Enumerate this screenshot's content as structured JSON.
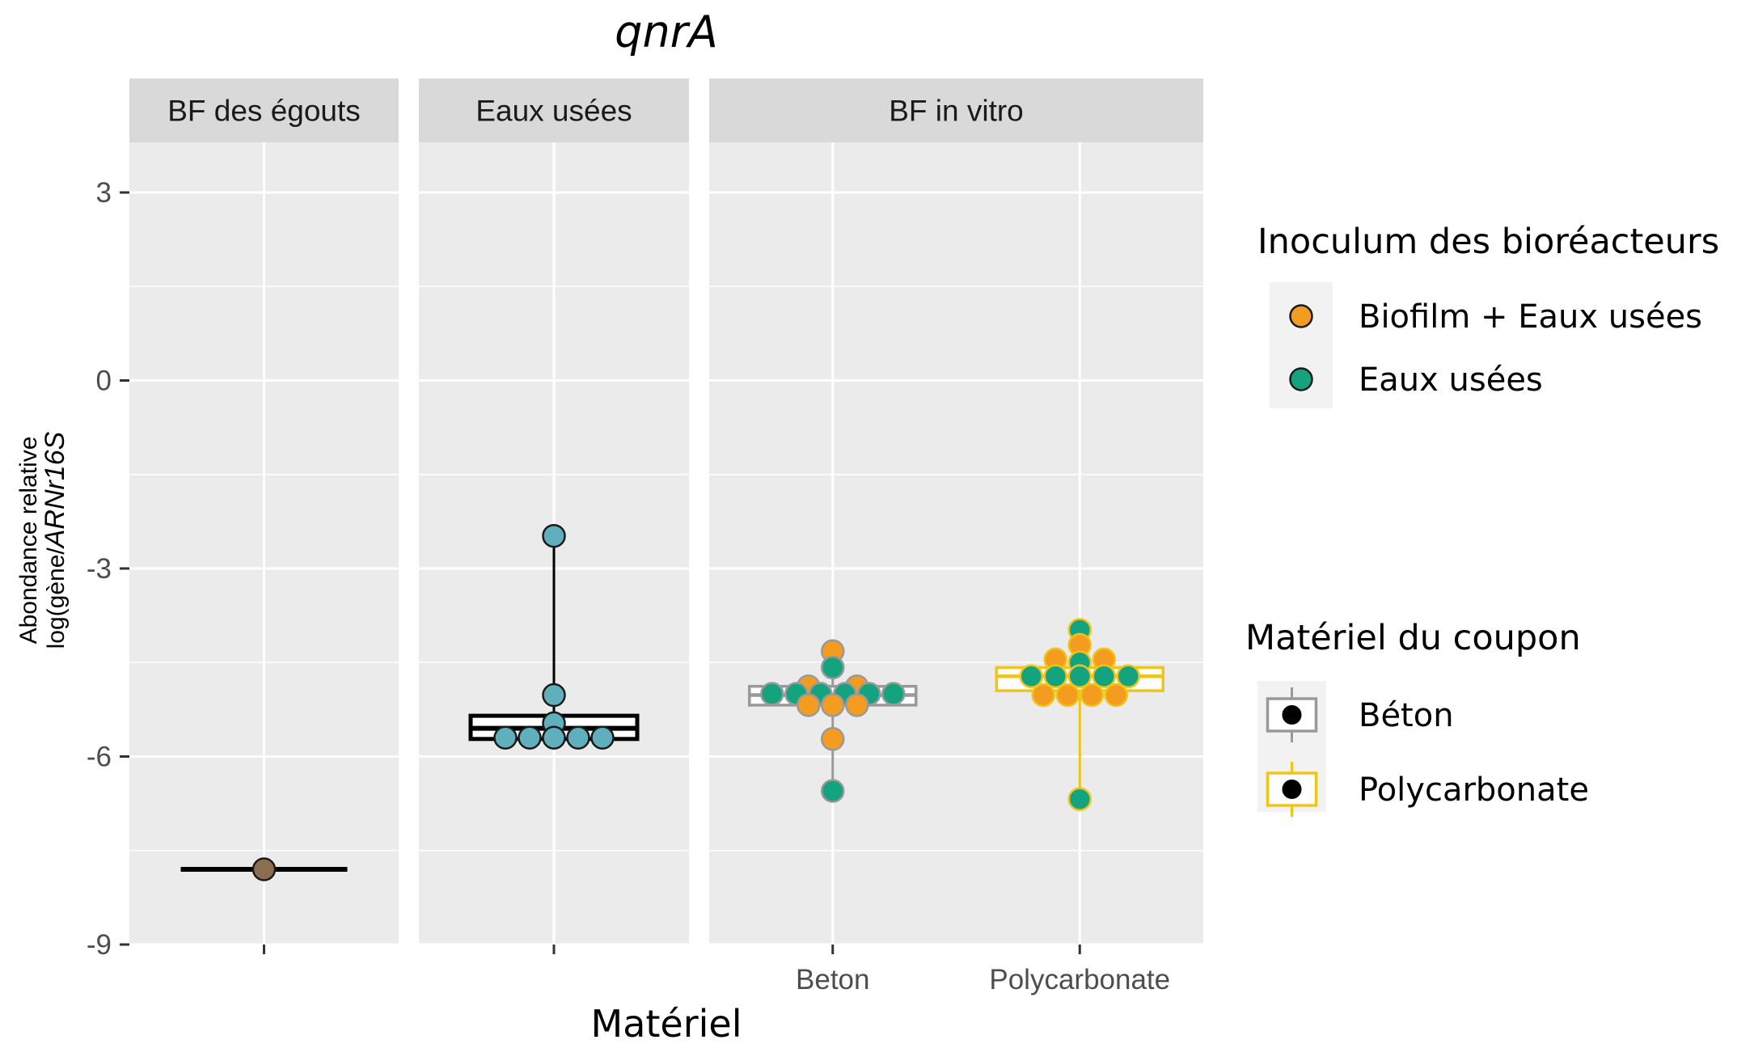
{
  "chart_data": {
    "type": "box",
    "title": "qnrA",
    "xlabel": "Matériel",
    "ylabel_line1": "Abondance relative",
    "ylabel_line2_prefix": "log(gène/",
    "ylabel_line2_italic": "ARNr16S",
    "ylabel_line2_suffix": "",
    "ylim": [
      -9,
      3.8
    ],
    "yticks": [
      3,
      0,
      -3,
      -6,
      -9
    ],
    "ytick_labels": [
      "3",
      "0",
      "-3",
      "-6",
      "-9"
    ],
    "grid": true,
    "panels": [
      {
        "label": "BF des égouts",
        "categories": [
          ""
        ],
        "boxes": [
          {
            "category": "",
            "q1": -7.8,
            "median": -7.8,
            "q3": -7.8,
            "whisker_low": -7.8,
            "whisker_high": -7.8,
            "border": "#000000",
            "outline_weight": "thick"
          }
        ],
        "points": [
          {
            "category": "",
            "y": -7.8,
            "fill": "#8c6d4f",
            "offset": 0
          }
        ]
      },
      {
        "label": "Eaux usées",
        "categories": [
          ""
        ],
        "boxes": [
          {
            "category": "",
            "q1": -5.72,
            "median": -5.55,
            "q3": -5.35,
            "whisker_low": -5.72,
            "whisker_high": -2.48,
            "border": "#000000",
            "outline_weight": "thick"
          }
        ],
        "points": [
          {
            "category": "",
            "y": -2.48,
            "fill": "#5fafbd",
            "offset": 0
          },
          {
            "category": "",
            "y": -5.02,
            "fill": "#5fafbd",
            "offset": 0
          },
          {
            "category": "",
            "y": -5.47,
            "fill": "#5fafbd",
            "offset": 0
          },
          {
            "category": "",
            "y": -5.7,
            "fill": "#5fafbd",
            "offset": -2
          },
          {
            "category": "",
            "y": -5.7,
            "fill": "#5fafbd",
            "offset": -1
          },
          {
            "category": "",
            "y": -5.7,
            "fill": "#5fafbd",
            "offset": 0
          },
          {
            "category": "",
            "y": -5.7,
            "fill": "#5fafbd",
            "offset": 1
          },
          {
            "category": "",
            "y": -5.7,
            "fill": "#5fafbd",
            "offset": 2
          }
        ]
      },
      {
        "label": "BF in vitro",
        "categories": [
          "Beton",
          "Polycarbonate"
        ],
        "boxes": [
          {
            "category": "Beton",
            "q1": -5.18,
            "median": -5.02,
            "q3": -4.88,
            "whisker_low": -6.55,
            "whisker_high": -4.32,
            "border": "#999999",
            "outline_weight": "normal"
          },
          {
            "category": "Polycarbonate",
            "q1": -4.95,
            "median": -4.72,
            "q3": -4.58,
            "whisker_low": -6.68,
            "whisker_high": -3.98,
            "border": "#f0c419",
            "outline_weight": "normal"
          }
        ],
        "points": [
          {
            "category": "Beton",
            "y": -4.32,
            "fill": "#f39c1f",
            "offset": 0
          },
          {
            "category": "Beton",
            "y": -4.58,
            "fill": "#14a37f",
            "offset": 0
          },
          {
            "category": "Beton",
            "y": -4.88,
            "fill": "#f39c1f",
            "offset": -1
          },
          {
            "category": "Beton",
            "y": -4.88,
            "fill": "#f39c1f",
            "offset": 1
          },
          {
            "category": "Beton",
            "y": -5.0,
            "fill": "#14a37f",
            "offset": -2.5
          },
          {
            "category": "Beton",
            "y": -5.0,
            "fill": "#14a37f",
            "offset": -1.5
          },
          {
            "category": "Beton",
            "y": -5.0,
            "fill": "#14a37f",
            "offset": -0.5
          },
          {
            "category": "Beton",
            "y": -5.0,
            "fill": "#14a37f",
            "offset": 0.5
          },
          {
            "category": "Beton",
            "y": -5.0,
            "fill": "#14a37f",
            "offset": 1.5
          },
          {
            "category": "Beton",
            "y": -5.0,
            "fill": "#14a37f",
            "offset": 2.5
          },
          {
            "category": "Beton",
            "y": -5.18,
            "fill": "#f39c1f",
            "offset": -1
          },
          {
            "category": "Beton",
            "y": -5.18,
            "fill": "#f39c1f",
            "offset": 0
          },
          {
            "category": "Beton",
            "y": -5.18,
            "fill": "#f39c1f",
            "offset": 1
          },
          {
            "category": "Beton",
            "y": -5.72,
            "fill": "#f39c1f",
            "offset": 0
          },
          {
            "category": "Beton",
            "y": -6.55,
            "fill": "#14a37f",
            "offset": 0
          },
          {
            "category": "Polycarbonate",
            "y": -3.98,
            "fill": "#14a37f",
            "offset": 0
          },
          {
            "category": "Polycarbonate",
            "y": -4.22,
            "fill": "#f39c1f",
            "offset": 0
          },
          {
            "category": "Polycarbonate",
            "y": -4.45,
            "fill": "#f39c1f",
            "offset": -1
          },
          {
            "category": "Polycarbonate",
            "y": -4.45,
            "fill": "#f39c1f",
            "offset": 1
          },
          {
            "category": "Polycarbonate",
            "y": -4.5,
            "fill": "#14a37f",
            "offset": 0
          },
          {
            "category": "Polycarbonate",
            "y": -4.72,
            "fill": "#14a37f",
            "offset": -2
          },
          {
            "category": "Polycarbonate",
            "y": -4.72,
            "fill": "#14a37f",
            "offset": -1
          },
          {
            "category": "Polycarbonate",
            "y": -4.72,
            "fill": "#14a37f",
            "offset": 0
          },
          {
            "category": "Polycarbonate",
            "y": -4.72,
            "fill": "#14a37f",
            "offset": 1
          },
          {
            "category": "Polycarbonate",
            "y": -4.72,
            "fill": "#14a37f",
            "offset": 2
          },
          {
            "category": "Polycarbonate",
            "y": -5.02,
            "fill": "#f39c1f",
            "offset": -1.5
          },
          {
            "category": "Polycarbonate",
            "y": -5.02,
            "fill": "#f39c1f",
            "offset": -0.5
          },
          {
            "category": "Polycarbonate",
            "y": -5.02,
            "fill": "#f39c1f",
            "offset": 0.5
          },
          {
            "category": "Polycarbonate",
            "y": -5.02,
            "fill": "#f39c1f",
            "offset": 1.5
          },
          {
            "category": "Polycarbonate",
            "y": -6.68,
            "fill": "#14a37f",
            "offset": 0
          }
        ]
      }
    ],
    "legends": [
      {
        "title": "Inoculum des bioréacteurs",
        "kind": "point",
        "items": [
          {
            "label": "Biofilm + Eaux usées",
            "color": "#f39c1f"
          },
          {
            "label": "Eaux usées",
            "color": "#14a37f"
          }
        ]
      },
      {
        "title": "Matériel du coupon",
        "kind": "box",
        "items": [
          {
            "label": "Béton",
            "color": "#999999"
          },
          {
            "label": "Polycarbonate",
            "color": "#f0c419"
          }
        ]
      }
    ],
    "colors": {
      "panel_bg": "#ebebeb",
      "strip_bg": "#d9d9d9",
      "grid": "#ffffff",
      "tick": "#333333"
    }
  }
}
